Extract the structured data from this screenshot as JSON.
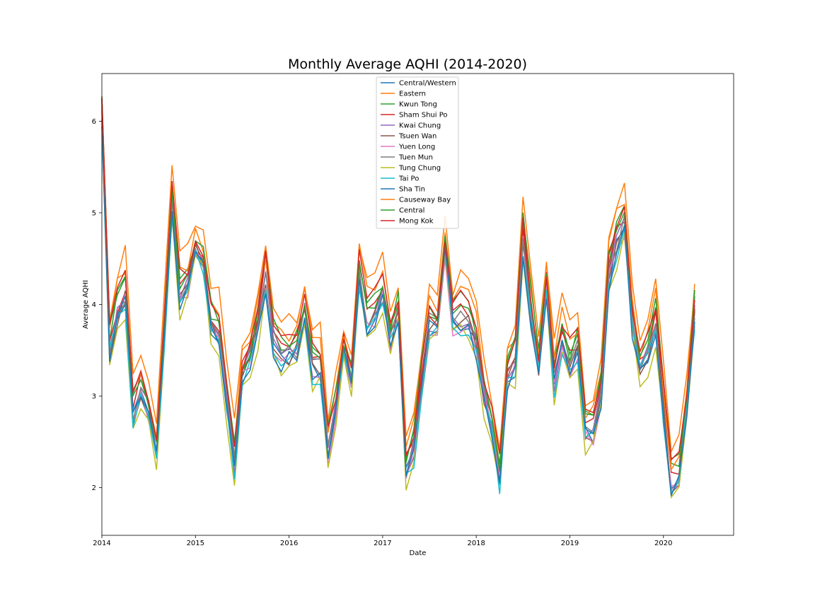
{
  "chart_data": {
    "type": "line",
    "title": "Monthly Average AQHI (2014-2020)",
    "xlabel": "Date",
    "ylabel": "Average AQHI",
    "x_start": "2014-01",
    "x_end": "2020-10",
    "xlim": [
      "2014-01",
      "2020-10"
    ],
    "ylim": [
      1.48,
      6.52
    ],
    "x_ticks": [
      "2014",
      "2015",
      "2016",
      "2017",
      "2018",
      "2019",
      "2020"
    ],
    "y_ticks": [
      "2",
      "3",
      "4",
      "5",
      "6"
    ],
    "grid": false,
    "legend_position": "upper center",
    "base_series": [
      {
        "year": "2014",
        "values": [
          6.1,
          3.5,
          3.9,
          4.1,
          2.8,
          3.05,
          2.85,
          2.35,
          3.7,
          5.1,
          4.05,
          4.2
        ]
      },
      {
        "year": "2015",
        "values": [
          4.6,
          4.45,
          3.75,
          3.65,
          2.95,
          2.25,
          3.2,
          3.4,
          3.75,
          4.3,
          3.6,
          3.4
        ]
      },
      {
        "year": "2016",
        "values": [
          3.45,
          3.5,
          3.9,
          3.3,
          3.3,
          2.4,
          2.85,
          3.5,
          3.15,
          4.3,
          3.8,
          3.85
        ]
      },
      {
        "year": "2017",
        "values": [
          4.1,
          3.6,
          3.9,
          2.2,
          2.4,
          3.1,
          3.8,
          3.75,
          4.6,
          3.8,
          3.85,
          3.8
        ]
      },
      {
        "year": "2018",
        "values": [
          3.55,
          3.0,
          2.65,
          2.1,
          3.2,
          3.35,
          4.7,
          3.9,
          3.3,
          4.2,
          3.15,
          3.6
        ]
      },
      {
        "year": "2019",
        "values": [
          3.3,
          3.5,
          2.6,
          2.6,
          3.0,
          4.3,
          4.65,
          4.85,
          3.8,
          3.3,
          3.45,
          3.8
        ]
      },
      {
        "year": "2020",
        "values": [
          2.85,
          2.0,
          2.1,
          2.9,
          3.9
        ]
      }
    ],
    "series": [
      {
        "name": "Central/Western",
        "color": "#1f77b4",
        "offset": -0.05
      },
      {
        "name": "Eastern",
        "color": "#ff7f0e",
        "offset": 0.45
      },
      {
        "name": "Kwun Tong",
        "color": "#2ca02c",
        "offset": 0.18
      },
      {
        "name": "Sham Shui Po",
        "color": "#d62728",
        "offset": 0.12
      },
      {
        "name": "Kwai Chung",
        "color": "#9467bd",
        "offset": 0.0
      },
      {
        "name": "Tsuen Wan",
        "color": "#8c564b",
        "offset": -0.02
      },
      {
        "name": "Yuen Long",
        "color": "#e377c2",
        "offset": -0.05
      },
      {
        "name": "Tuen Mun",
        "color": "#7f7f7f",
        "offset": 0.03
      },
      {
        "name": "Tung Chung",
        "color": "#bcbd22",
        "offset": -0.18
      },
      {
        "name": "Tai Po",
        "color": "#17becf",
        "offset": -0.1
      },
      {
        "name": "Sha Tin",
        "color": "#1f77b4",
        "offset": -0.08
      },
      {
        "name": "Causeway Bay",
        "color": "#ff7f0e",
        "offset": 0.3
      },
      {
        "name": "Central",
        "color": "#2ca02c",
        "offset": 0.22
      },
      {
        "name": "Mong Kok",
        "color": "#d62728",
        "offset": 0.25
      }
    ]
  }
}
